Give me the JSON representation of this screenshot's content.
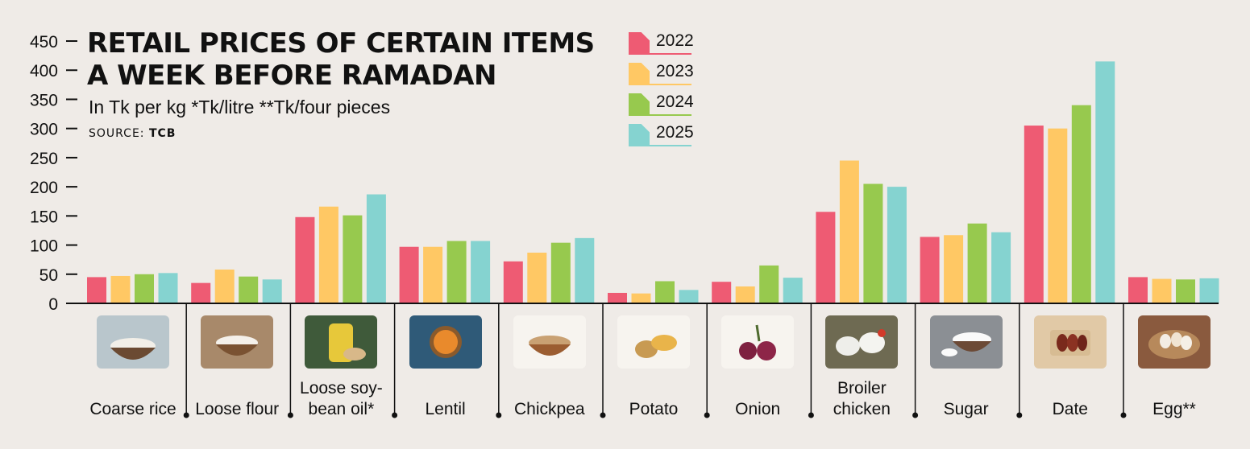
{
  "header": {
    "title_line1": "RETAIL PRICES OF CERTAIN ITEMS",
    "title_line2": "A WEEK BEFORE RAMADAN",
    "subtitle": "In Tk per kg *Tk/litre **Tk/four pieces",
    "source_label": "SOURCE:",
    "source_value": "TCB"
  },
  "legend": [
    {
      "label": "2022",
      "color": "#ee5b73"
    },
    {
      "label": "2023",
      "color": "#ffc864"
    },
    {
      "label": "2024",
      "color": "#97c94e"
    },
    {
      "label": "2025",
      "color": "#85d3d0"
    }
  ],
  "chart_data": {
    "type": "bar",
    "title": "RETAIL PRICES OF CERTAIN ITEMS A WEEK BEFORE RAMADAN",
    "subtitle": "In Tk per kg *Tk/litre **Tk/four pieces",
    "categories": [
      "Coarse rice",
      "Loose flour",
      "Loose soy-bean oil*",
      "Lentil",
      "Chickpea",
      "Potato",
      "Onion",
      "Broiler chicken",
      "Sugar",
      "Date",
      "Egg**"
    ],
    "series": [
      {
        "name": "2022",
        "color": "#ee5b73",
        "values": [
          45,
          35,
          148,
          97,
          72,
          18,
          37,
          157,
          114,
          305,
          45
        ]
      },
      {
        "name": "2023",
        "color": "#ffc864",
        "values": [
          47,
          58,
          166,
          97,
          87,
          17,
          29,
          245,
          117,
          300,
          42
        ]
      },
      {
        "name": "2024",
        "color": "#97c94e",
        "values": [
          50,
          46,
          151,
          107,
          104,
          38,
          65,
          205,
          137,
          340,
          41
        ]
      },
      {
        "name": "2025",
        "color": "#85d3d0",
        "values": [
          52,
          41,
          187,
          107,
          112,
          23,
          44,
          200,
          122,
          415,
          43
        ]
      }
    ],
    "y_ticks": [
      "0",
      "50",
      "100",
      "150",
      "200",
      "250",
      "300",
      "350",
      "400",
      "450"
    ],
    "ylim": [
      0,
      450
    ],
    "grid": false,
    "legend_position": "top-center"
  },
  "categories_display": [
    {
      "lines": [
        "Coarse rice"
      ],
      "icon": "rice-bowl-icon"
    },
    {
      "lines": [
        "Loose flour"
      ],
      "icon": "flour-bowl-icon"
    },
    {
      "lines": [
        "Loose soy-",
        "bean oil*"
      ],
      "icon": "oil-bottle-icon"
    },
    {
      "lines": [
        "Lentil"
      ],
      "icon": "lentil-bowl-icon"
    },
    {
      "lines": [
        "Chickpea"
      ],
      "icon": "chickpea-bowl-icon"
    },
    {
      "lines": [
        "Potato"
      ],
      "icon": "potato-icon"
    },
    {
      "lines": [
        "Onion"
      ],
      "icon": "onion-icon"
    },
    {
      "lines": [
        "Broiler",
        "chicken"
      ],
      "icon": "chicken-icon"
    },
    {
      "lines": [
        "Sugar"
      ],
      "icon": "sugar-bowl-icon"
    },
    {
      "lines": [
        "Date"
      ],
      "icon": "dates-plate-icon"
    },
    {
      "lines": [
        "Egg**"
      ],
      "icon": "egg-basket-icon"
    }
  ]
}
